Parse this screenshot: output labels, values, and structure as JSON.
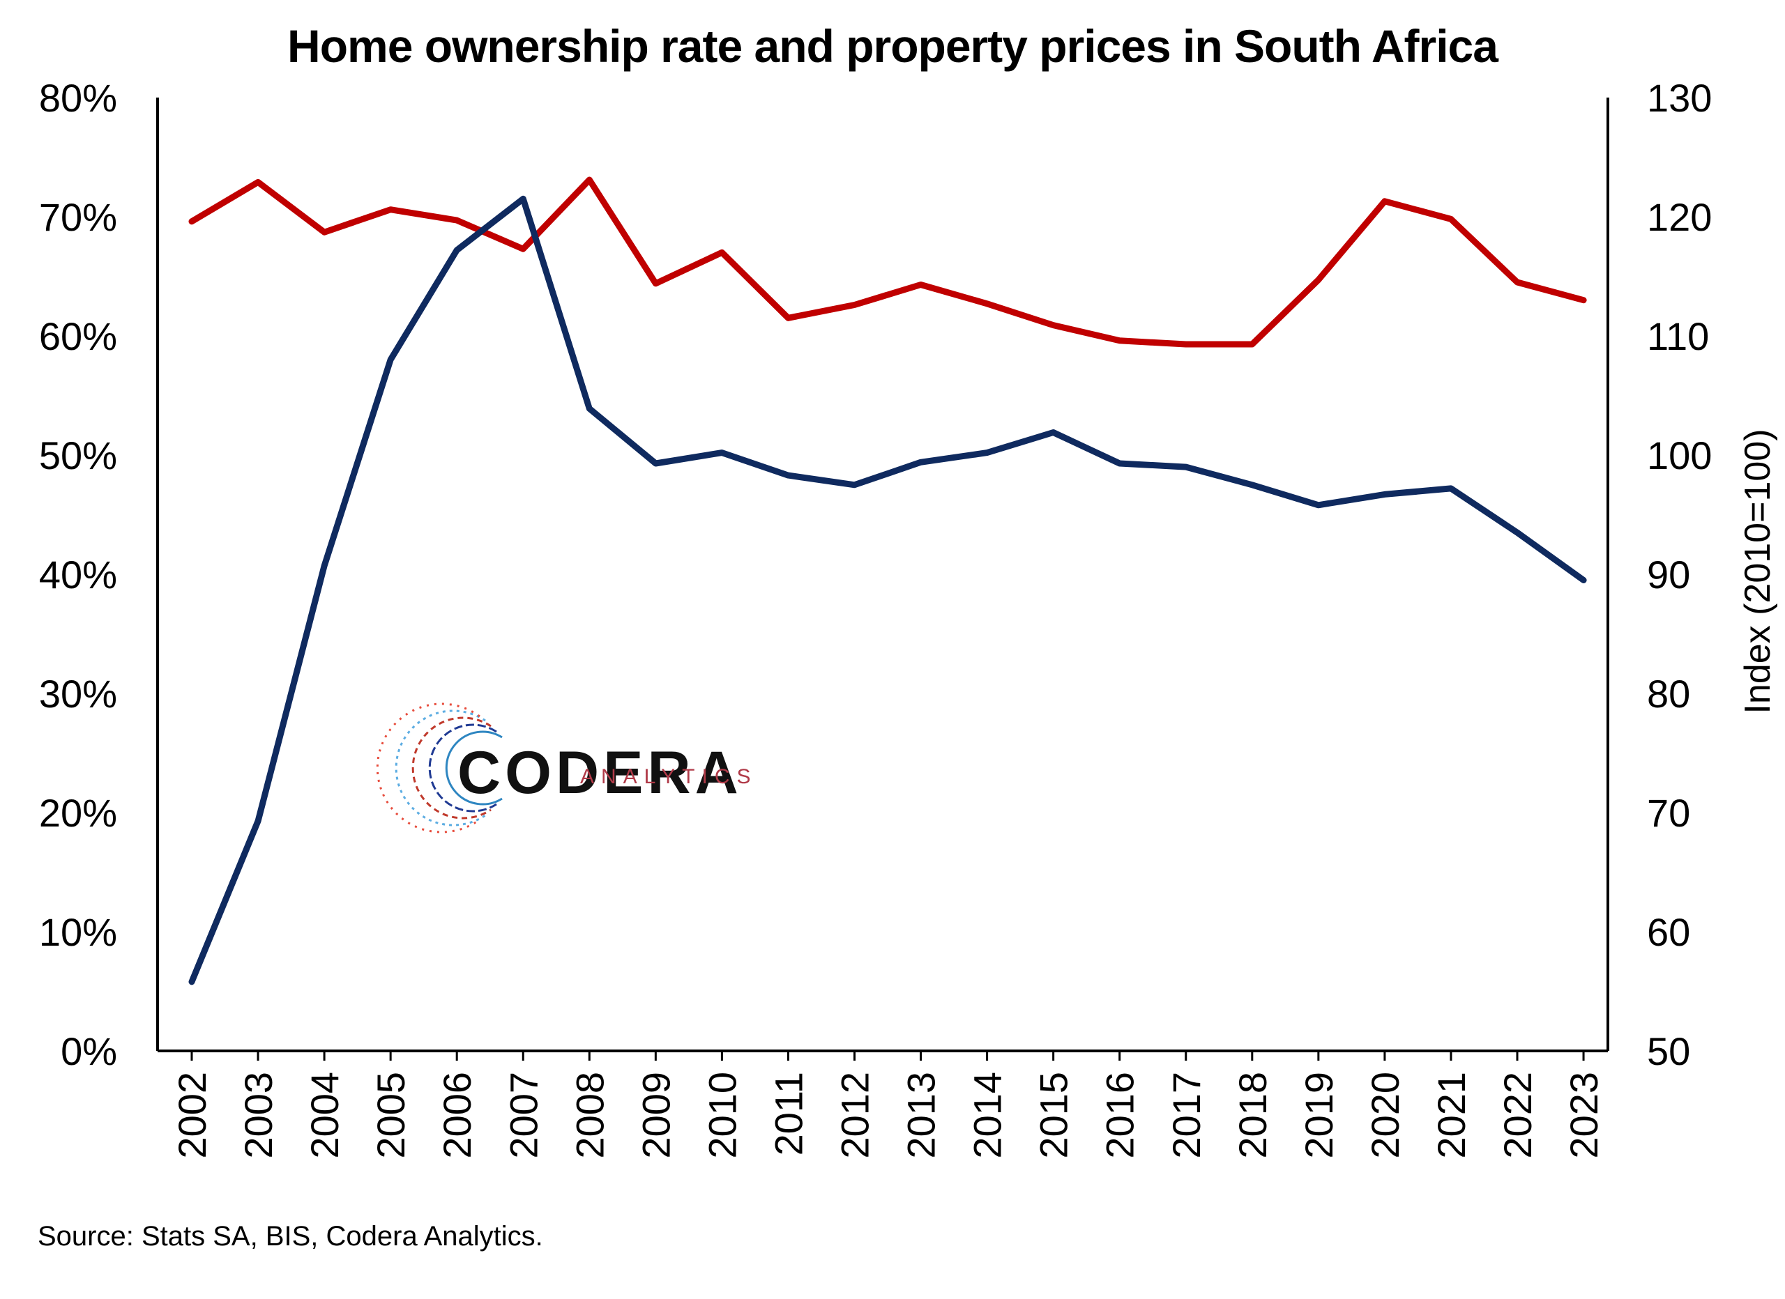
{
  "chart_data": {
    "type": "line",
    "title": "Home ownership rate and property prices in South Africa",
    "x": [
      "2002",
      "2003",
      "2004",
      "2005",
      "2006",
      "2007",
      "2008",
      "2009",
      "2010",
      "2011",
      "2012",
      "2013",
      "2014",
      "2015",
      "2016",
      "2017",
      "2018",
      "2019",
      "2020",
      "2021",
      "2022",
      "2023"
    ],
    "y_left": {
      "ticks": [
        "0%",
        "10%",
        "20%",
        "30%",
        "40%",
        "50%",
        "60%",
        "70%",
        "80%"
      ],
      "ylim": [
        0,
        80
      ],
      "label": ""
    },
    "y_right": {
      "ticks": [
        "50",
        "60",
        "70",
        "80",
        "90",
        "100",
        "110",
        "120",
        "130"
      ],
      "ylim": [
        50,
        130
      ],
      "label": "Index (2010=100)"
    },
    "series": [
      {
        "axis": "left",
        "color": "#C00000",
        "values": [
          69.6,
          72.9,
          68.7,
          70.6,
          69.7,
          67.3,
          73.1,
          64.4,
          67.0,
          61.5,
          62.6,
          64.3,
          62.7,
          60.9,
          59.6,
          59.3,
          59.3,
          64.7,
          71.3,
          69.8,
          64.5,
          63.0
        ]
      },
      {
        "axis": "right",
        "color": "#0F2A5F",
        "values": [
          55.8,
          69.3,
          90.7,
          108.0,
          117.2,
          121.5,
          103.9,
          99.3,
          100.2,
          98.3,
          97.5,
          99.4,
          100.2,
          101.9,
          99.3,
          99.0,
          97.5,
          95.8,
          96.7,
          97.2,
          93.5,
          89.5
        ]
      }
    ],
    "grid": false,
    "legend": "none"
  },
  "logo": {
    "word": "CODERA",
    "sub": "ANALYTICS"
  },
  "source": "Source: Stats SA, BIS, Codera Analytics."
}
